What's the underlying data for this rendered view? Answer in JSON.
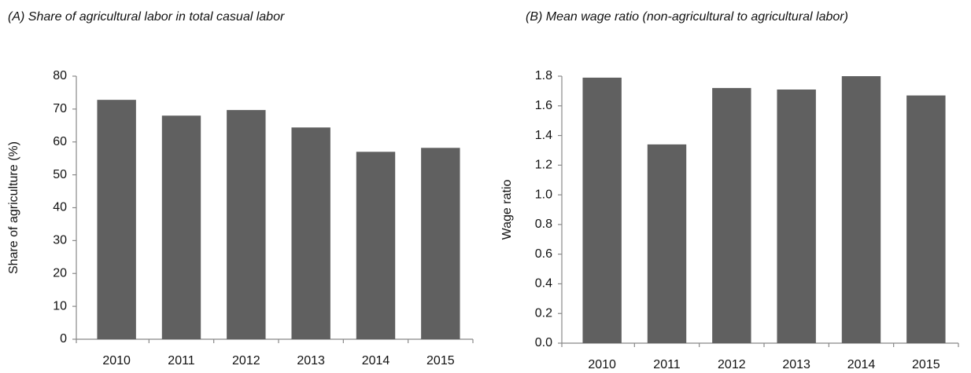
{
  "chart_data": [
    {
      "type": "bar",
      "title": "(A) Share of agricultural labor in total casual labor",
      "y_label": "Share of  agriculture (%)",
      "categories": [
        "2010",
        "2011",
        "2012",
        "2013",
        "2014",
        "2015"
      ],
      "values": [
        72.8,
        68,
        69.7,
        64.4,
        57,
        58.2
      ],
      "color": "#606060",
      "ylim": [
        0,
        80
      ],
      "yticks": [
        0,
        10,
        20,
        30,
        40,
        50,
        60,
        70,
        80
      ],
      "grid": false
    },
    {
      "type": "bar",
      "title": "(B) Mean wage ratio (non-agricultural to agricultural labor)",
      "y_label": "Wage ratio",
      "categories": [
        "2010",
        "2011",
        "2012",
        "2013",
        "2014",
        "2015"
      ],
      "values": [
        1.79,
        1.34,
        1.72,
        1.71,
        1.8,
        1.67
      ],
      "color": "#606060",
      "ylim": [
        0,
        1.8
      ],
      "yticks": [
        {
          "value": 0,
          "label": "0.0"
        },
        0.2,
        0.4,
        0.6,
        0.8,
        {
          "value": 1,
          "label": "1.0"
        },
        1.2,
        1.4,
        1.6,
        1.8
      ],
      "grid": false
    }
  ]
}
